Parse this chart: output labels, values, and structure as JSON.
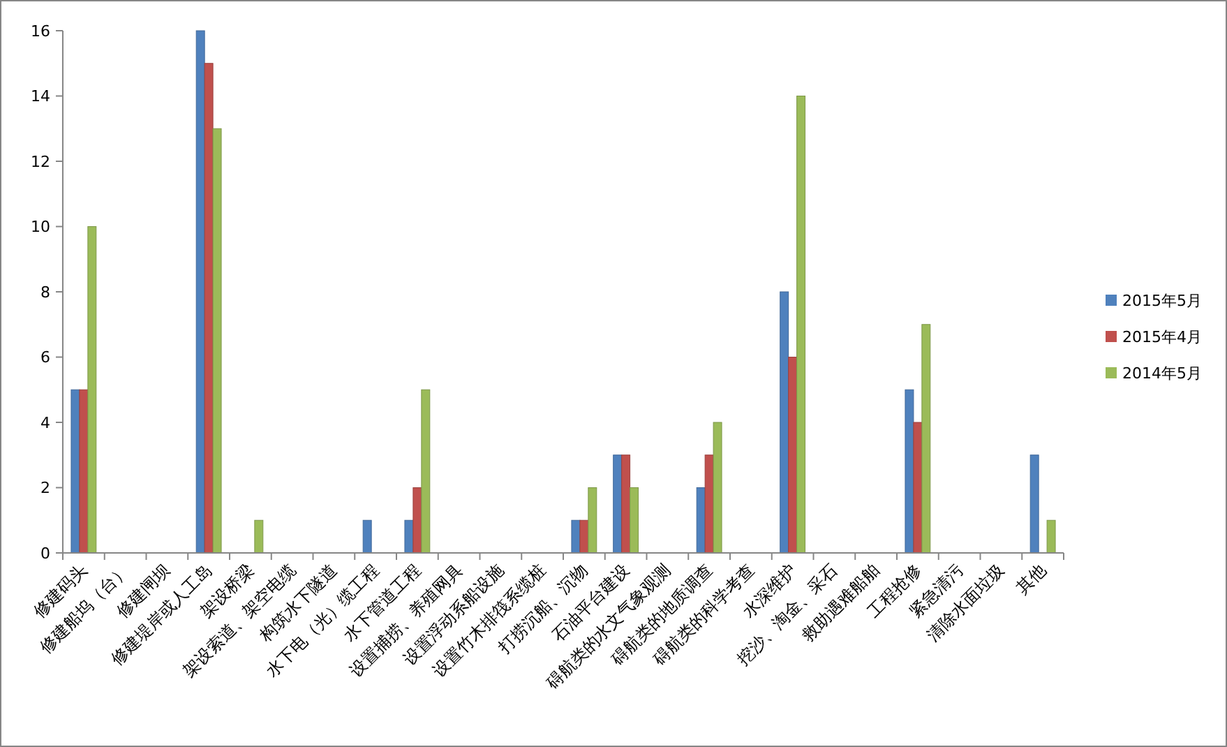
{
  "chart_data": {
    "type": "bar",
    "categories": [
      "修建码头",
      "修建船坞（台）",
      "修建闸坝",
      "修建堤岸或人工岛",
      "架设桥梁",
      "架设索道、架空电缆",
      "构筑水下隧道",
      "水下电（光）缆工程",
      "水下管道工程",
      "设置捕捞、养殖网具",
      "设置浮动系船设施",
      "设置竹木排筏系缆桩",
      "打捞沉船、沉物",
      "石油平台建设",
      "碍航类的水文气象观测",
      "碍航类的地质调查",
      "碍航类的科学考查",
      "水深维护",
      "挖沙、淘金、采石",
      "救助遇难船舶",
      "工程抢修",
      "紧急清污",
      "清除水面垃圾",
      "其他"
    ],
    "series": [
      {
        "name": "2015年5月",
        "color": "#4f81bd",
        "values": [
          5,
          0,
          0,
          16,
          0,
          0,
          0,
          1,
          1,
          0,
          0,
          0,
          1,
          3,
          0,
          2,
          0,
          8,
          0,
          0,
          5,
          0,
          0,
          3
        ]
      },
      {
        "name": "2015年4月",
        "color": "#c0504d",
        "values": [
          5,
          0,
          0,
          15,
          0,
          0,
          0,
          0,
          2,
          0,
          0,
          0,
          1,
          3,
          0,
          3,
          0,
          6,
          0,
          0,
          4,
          0,
          0,
          0
        ]
      },
      {
        "name": "2014年5月",
        "color": "#9bbb59",
        "values": [
          10,
          0,
          0,
          13,
          1,
          0,
          0,
          0,
          5,
          0,
          0,
          0,
          2,
          2,
          0,
          4,
          0,
          14,
          0,
          0,
          7,
          0,
          0,
          1
        ]
      }
    ],
    "ylim": [
      0,
      16
    ],
    "yticks": [
      0,
      2,
      4,
      6,
      8,
      10,
      12,
      14,
      16
    ],
    "legend": "right"
  }
}
